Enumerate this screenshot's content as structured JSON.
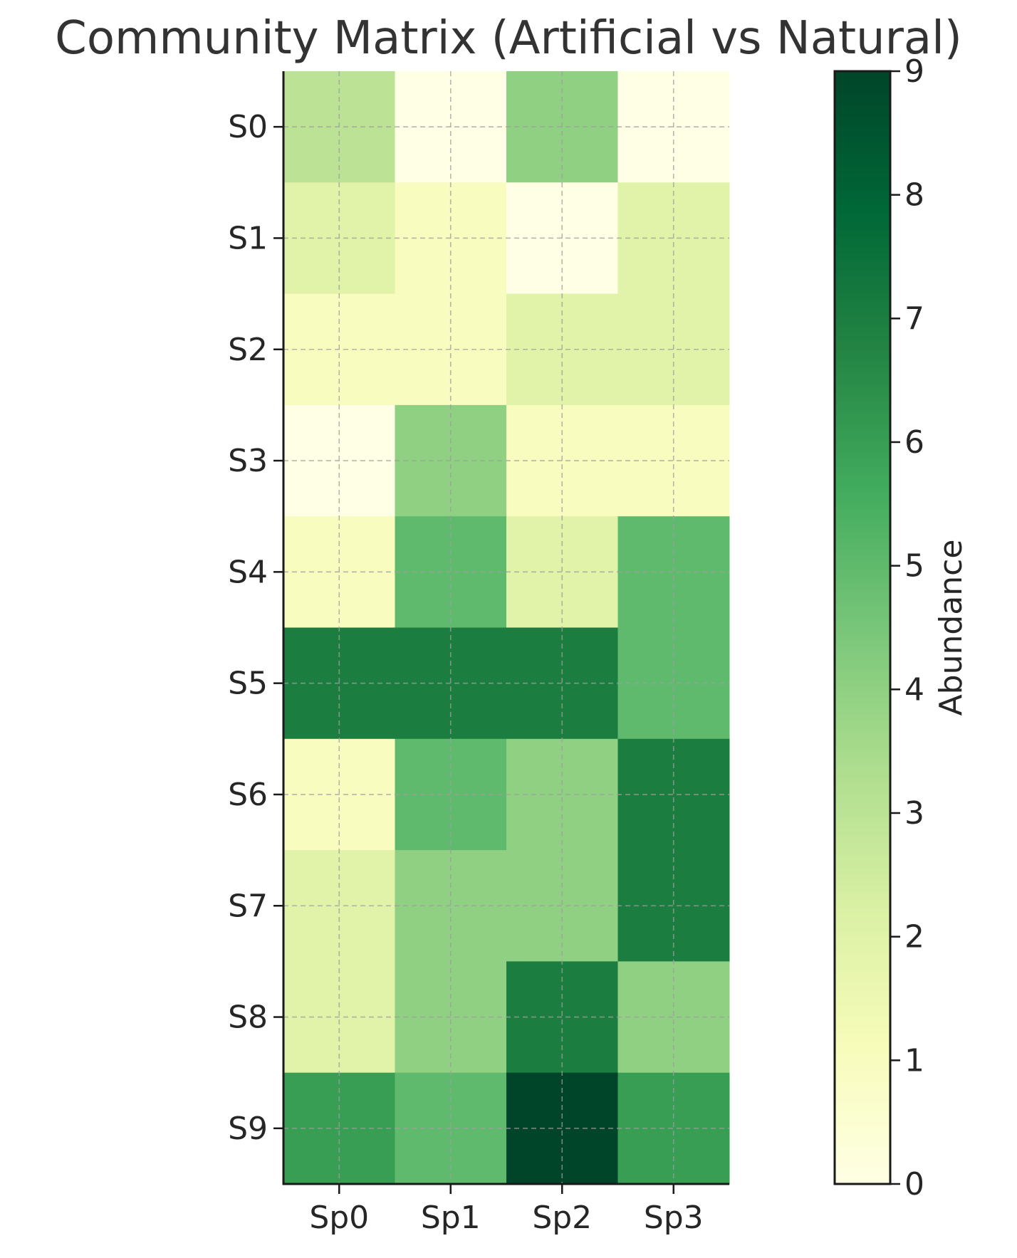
{
  "chart_data": {
    "type": "heatmap",
    "title": "Community Matrix (Artificial vs Natural)",
    "xlabel": "",
    "ylabel": "",
    "x_categories": [
      "Sp0",
      "Sp1",
      "Sp2",
      "Sp3"
    ],
    "y_categories": [
      "S0",
      "S1",
      "S2",
      "S3",
      "S4",
      "S5",
      "S6",
      "S7",
      "S8",
      "S9"
    ],
    "values": [
      [
        3,
        0,
        4,
        0
      ],
      [
        2,
        1,
        0,
        2
      ],
      [
        1,
        1,
        2,
        2
      ],
      [
        0,
        4,
        1,
        1
      ],
      [
        1,
        5,
        2,
        5
      ],
      [
        7,
        7,
        7,
        5
      ],
      [
        1,
        5,
        4,
        7
      ],
      [
        2,
        4,
        4,
        7
      ],
      [
        2,
        4,
        7,
        4
      ],
      [
        6,
        5,
        9,
        6
      ]
    ],
    "colorbar": {
      "label": "Abundance",
      "min": 0,
      "max": 9,
      "ticks": [
        0,
        1,
        2,
        3,
        4,
        5,
        6,
        7,
        8,
        9
      ]
    },
    "colormap": "YlGn",
    "grid": true
  }
}
